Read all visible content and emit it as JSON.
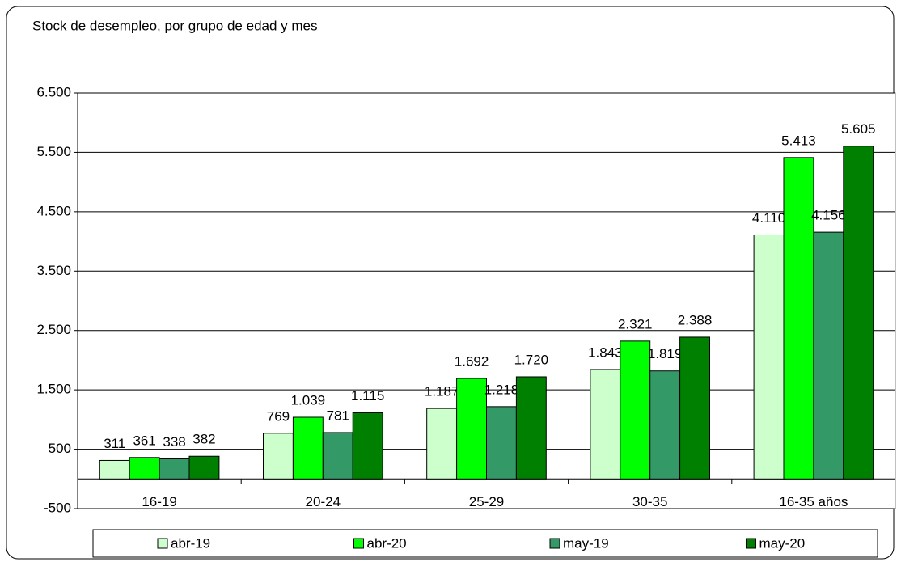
{
  "chart_data": {
    "type": "bar",
    "title": "Stock de desempleo, por grupo de edad y mes",
    "categories": [
      "16-19",
      "20-24",
      "25-29",
      "30-35",
      "16-35 años"
    ],
    "series": [
      {
        "name": "abr-19",
        "color": "#ccffcc",
        "values": [
          311,
          769,
          1187,
          1843,
          4110
        ],
        "value_labels": [
          "311",
          "769",
          "1.187",
          "1.843",
          "4.110"
        ]
      },
      {
        "name": "abr-20",
        "color": "#00ff00",
        "values": [
          361,
          1039,
          1692,
          2321,
          5413
        ],
        "value_labels": [
          "361",
          "1.039",
          "1.692",
          "2.321",
          "5.413"
        ]
      },
      {
        "name": "may-19",
        "color": "#339966",
        "values": [
          338,
          781,
          1218,
          1819,
          4156
        ],
        "value_labels": [
          "338",
          "781",
          "1.218",
          "1.819",
          "4.156"
        ]
      },
      {
        "name": "may-20",
        "color": "#008000",
        "values": [
          382,
          1115,
          1720,
          2388,
          5605
        ],
        "value_labels": [
          "382",
          "1.115",
          "1.720",
          "2.388",
          "5.605"
        ]
      }
    ],
    "ylim": [
      -500,
      6500
    ],
    "yticks": [
      -500,
      500,
      {
        "value": 1500,
        "label": "1.500"
      },
      {
        "value": 2500,
        "label": "2.500"
      },
      {
        "value": 3500,
        "label": "3.500"
      },
      {
        "value": 4500,
        "label": "4.500"
      },
      {
        "value": 5500,
        "label": "5.500"
      },
      {
        "value": 6500,
        "label": "6.500"
      }
    ],
    "grid": true,
    "legend": "bottom"
  }
}
